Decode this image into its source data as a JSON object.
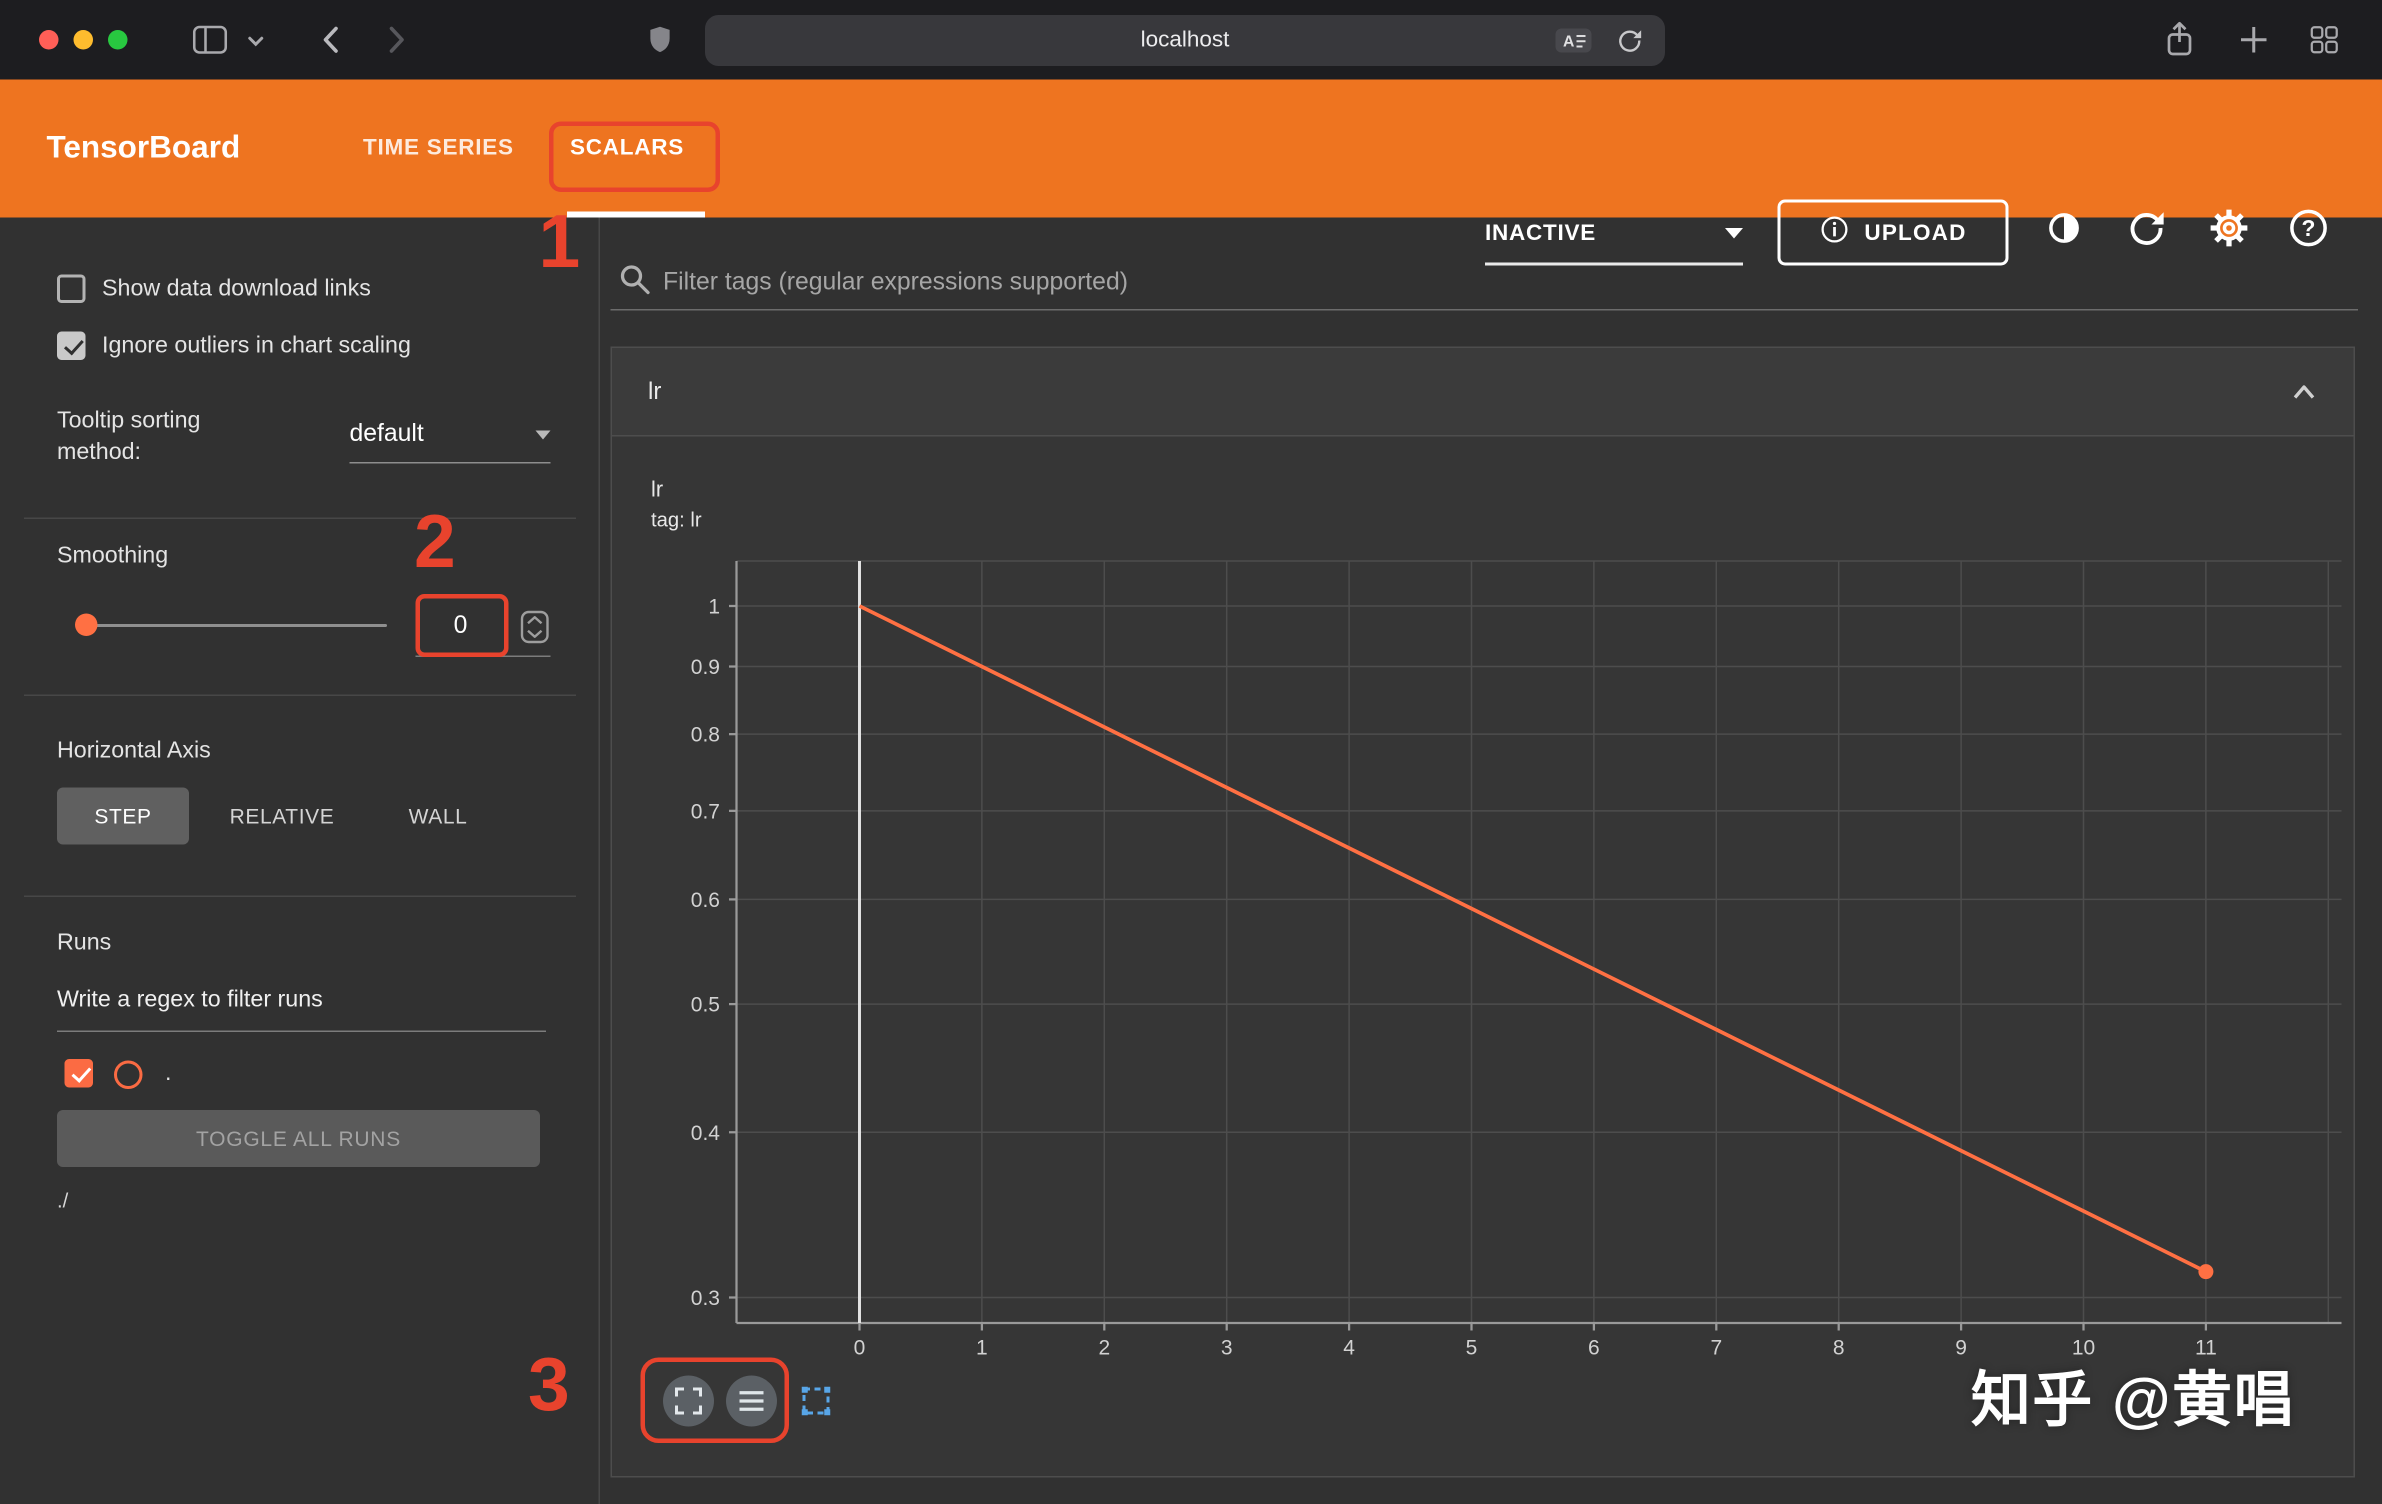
{
  "browser": {
    "address": "localhost"
  },
  "header": {
    "brand": "TensorBoard",
    "tabs": [
      {
        "label": "TIME SERIES",
        "active": false
      },
      {
        "label": "SCALARS",
        "active": true
      }
    ],
    "status_dropdown": "INACTIVE",
    "upload_button": "UPLOAD"
  },
  "sidebar": {
    "checkboxes": [
      {
        "label": "Show data download links",
        "checked": false
      },
      {
        "label": "Ignore outliers in chart scaling",
        "checked": true
      }
    ],
    "tooltip_sorting": {
      "label": "Tooltip sorting method:",
      "value": "default"
    },
    "smoothing": {
      "label": "Smoothing",
      "value": "0"
    },
    "horizontal_axis": {
      "label": "Horizontal Axis",
      "options": [
        "STEP",
        "RELATIVE",
        "WALL"
      ],
      "selected": "STEP"
    },
    "runs": {
      "label": "Runs",
      "filter_placeholder": "Write a regex to filter runs",
      "items": [
        {
          "name": ".",
          "checked": true,
          "color": "#fb6b43"
        }
      ],
      "toggle_all": "TOGGLE ALL RUNS",
      "path": "./"
    }
  },
  "main": {
    "filter_placeholder": "Filter tags (regular expressions supported)",
    "card": {
      "title": "lr"
    }
  },
  "chart_data": {
    "type": "line",
    "title": "lr",
    "subtitle": "tag: lr",
    "x": [
      0,
      1,
      2,
      3,
      4,
      5,
      6,
      7,
      8,
      9,
      10,
      11
    ],
    "series": [
      {
        "name": ".",
        "color": "#ff7043",
        "values": [
          1,
          0.9,
          0.81,
          0.729,
          0.6561,
          0.5905,
          0.5314,
          0.4783,
          0.4305,
          0.3874,
          0.3487,
          0.3138
        ]
      }
    ],
    "x_ticks": [
      0,
      1,
      2,
      3,
      4,
      5,
      6,
      7,
      8,
      9,
      10,
      11
    ],
    "y_ticks": [
      1,
      0.9,
      0.8,
      0.7,
      0.6,
      0.5,
      0.4,
      0.3
    ],
    "y_scale": "log",
    "y_range": [
      0.3,
      1
    ],
    "x_range": [
      0,
      12
    ],
    "grid": true,
    "legend": "none"
  },
  "annotations": {
    "step1": "1",
    "step2": "2",
    "step3": "3",
    "color": "#e8432d"
  },
  "watermark": "知乎 @黄唱",
  "colors": {
    "header_orange": "#ee7420",
    "run_orange": "#ff7043",
    "annotation_red": "#e8432d"
  }
}
